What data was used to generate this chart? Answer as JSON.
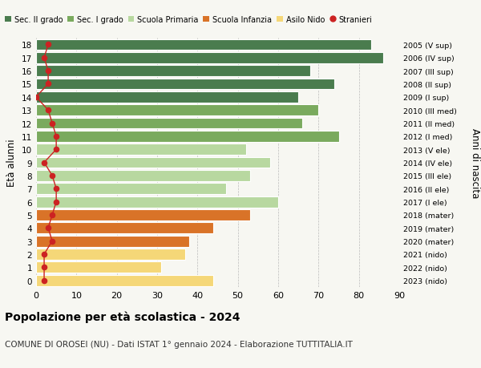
{
  "ages": [
    18,
    17,
    16,
    15,
    14,
    13,
    12,
    11,
    10,
    9,
    8,
    7,
    6,
    5,
    4,
    3,
    2,
    1,
    0
  ],
  "right_labels": [
    "2005 (V sup)",
    "2006 (IV sup)",
    "2007 (III sup)",
    "2008 (II sup)",
    "2009 (I sup)",
    "2010 (III med)",
    "2011 (II med)",
    "2012 (I med)",
    "2013 (V ele)",
    "2014 (IV ele)",
    "2015 (III ele)",
    "2016 (II ele)",
    "2017 (I ele)",
    "2018 (mater)",
    "2019 (mater)",
    "2020 (mater)",
    "2021 (nido)",
    "2022 (nido)",
    "2023 (nido)"
  ],
  "bar_values": [
    83,
    86,
    68,
    74,
    65,
    70,
    66,
    75,
    52,
    58,
    53,
    47,
    60,
    53,
    44,
    38,
    37,
    31,
    44
  ],
  "bar_colors": [
    "#4a7c4e",
    "#4a7c4e",
    "#4a7c4e",
    "#4a7c4e",
    "#4a7c4e",
    "#7aaa5e",
    "#7aaa5e",
    "#7aaa5e",
    "#b8d8a0",
    "#b8d8a0",
    "#b8d8a0",
    "#b8d8a0",
    "#b8d8a0",
    "#d97328",
    "#d97328",
    "#d97328",
    "#f5d778",
    "#f5d778",
    "#f5d778"
  ],
  "stranieri_values": [
    3,
    2,
    3,
    3,
    0,
    3,
    4,
    5,
    5,
    2,
    4,
    5,
    5,
    4,
    3,
    4,
    2,
    2,
    2
  ],
  "legend_labels": [
    "Sec. II grado",
    "Sec. I grado",
    "Scuola Primaria",
    "Scuola Infanzia",
    "Asilo Nido",
    "Stranieri"
  ],
  "legend_colors": [
    "#4a7c4e",
    "#7aaa5e",
    "#b8d8a0",
    "#d97328",
    "#f5d778",
    "#cc2222"
  ],
  "title": "Popolazione per età scolastica - 2024",
  "subtitle": "COMUNE DI OROSEI (NU) - Dati ISTAT 1° gennaio 2024 - Elaborazione TUTTITALIA.IT",
  "ylabel_left": "Età alunni",
  "ylabel_right": "Anni di nascita",
  "xlim": [
    0,
    90
  ],
  "xticks": [
    0,
    10,
    20,
    30,
    40,
    50,
    60,
    70,
    80,
    90
  ],
  "background_color": "#f7f7f2"
}
